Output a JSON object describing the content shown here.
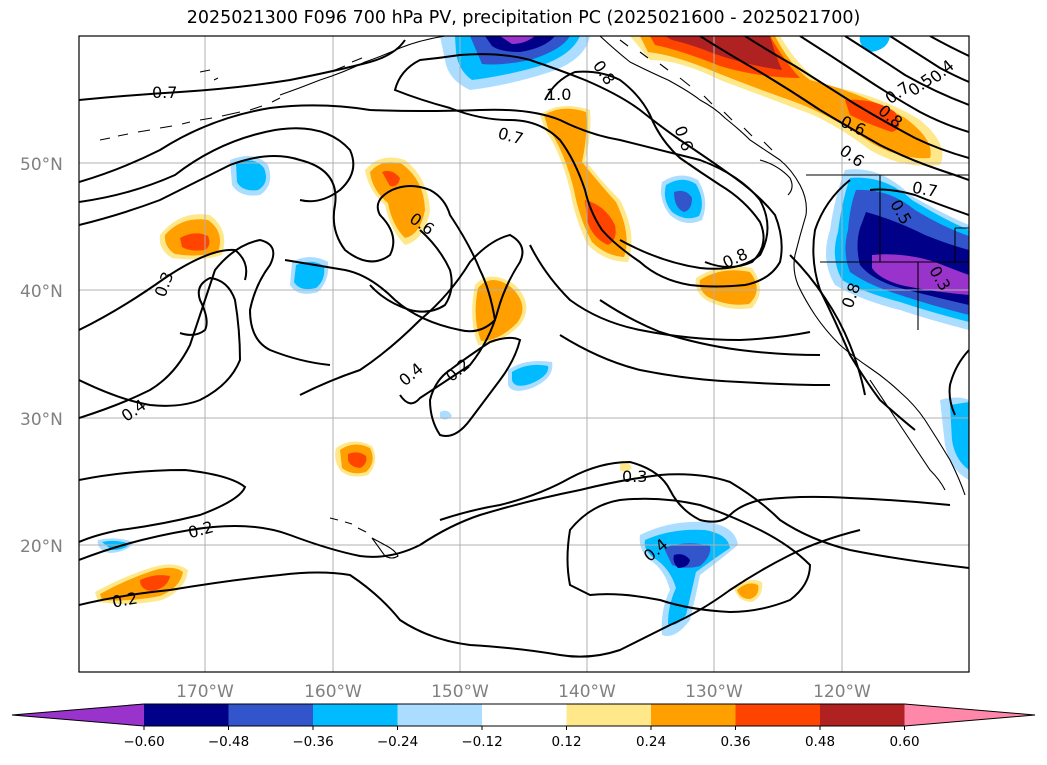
{
  "title": "2025021300 F096 700 hPa PV, precipitation PC (2025021600 - 2025021700)",
  "axes": {
    "lat_ticks": [
      "50°N",
      "40°N",
      "30°N",
      "20°N"
    ],
    "lon_ticks": [
      "170°W",
      "160°W",
      "150°W",
      "140°W",
      "130°W",
      "120°W"
    ]
  },
  "colorbar": {
    "colors": [
      "#9933cc",
      "#000088",
      "#3355cc",
      "#00bbff",
      "#aaddff",
      "#ffffff",
      "#ffe88a",
      "#ff9f00",
      "#ff4400",
      "#b02222",
      "#ff88aa"
    ],
    "labels": [
      "−0.60",
      "−0.48",
      "−0.36",
      "−0.24",
      "−0.12",
      "0.12",
      "0.24",
      "0.36",
      "0.48",
      "0.60"
    ]
  },
  "contour_labels": [
    "0.7",
    "1.0",
    "0.8",
    "0.7",
    "0.6",
    "0.6",
    "0.7",
    "0.5",
    "0.4",
    "0.8",
    "0.6",
    "0.8",
    "0.7",
    "0.5",
    "0.6",
    "0.3",
    "0.8",
    "0.3",
    "0.4",
    "0.2",
    "0.4",
    "0.3",
    "0.2",
    "0.4",
    "0.2"
  ]
}
